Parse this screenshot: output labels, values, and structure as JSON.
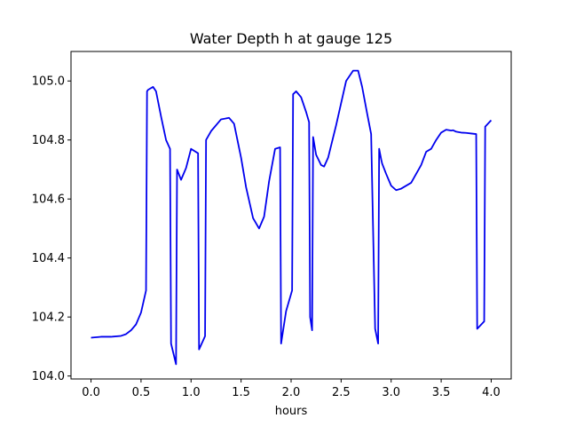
{
  "chart_data": {
    "type": "line",
    "title": "Water Depth h at gauge 125",
    "xlabel": "hours",
    "ylabel": "",
    "xlim": [
      -0.2,
      4.2
    ],
    "ylim": [
      103.99,
      105.1
    ],
    "xticks": [
      0.0,
      0.5,
      1.0,
      1.5,
      2.0,
      2.5,
      3.0,
      3.5,
      4.0
    ],
    "xtick_labels": [
      "0.0",
      "0.5",
      "1.0",
      "1.5",
      "2.0",
      "2.5",
      "3.0",
      "3.5",
      "4.0"
    ],
    "yticks": [
      104.0,
      104.2,
      104.4,
      104.6,
      104.8,
      105.0
    ],
    "ytick_labels": [
      "104.0",
      "104.2",
      "104.4",
      "104.6",
      "104.8",
      "105.0"
    ],
    "grid": false,
    "line_color": "#0000ee",
    "series": [
      {
        "x": [
          0.0,
          0.1,
          0.2,
          0.3,
          0.35,
          0.4,
          0.45,
          0.5,
          0.55,
          0.56,
          0.57,
          0.62,
          0.65,
          0.7,
          0.75,
          0.79,
          0.8,
          0.85,
          0.86,
          0.9,
          0.95,
          1.0,
          1.07,
          1.08,
          1.14,
          1.15,
          1.2,
          1.3,
          1.38,
          1.43,
          1.5,
          1.55,
          1.62,
          1.68,
          1.73,
          1.78,
          1.84,
          1.89,
          1.9,
          1.95,
          2.01,
          2.02,
          2.05,
          2.1,
          2.15,
          2.18,
          2.19,
          2.21,
          2.22,
          2.25,
          2.3,
          2.33,
          2.37,
          2.45,
          2.55,
          2.62,
          2.67,
          2.71,
          2.76,
          2.8,
          2.84,
          2.87,
          2.88,
          2.9,
          2.91,
          2.95,
          3.0,
          3.05,
          3.1,
          3.2,
          3.3,
          3.35,
          3.4,
          3.45,
          3.5,
          3.55,
          3.6,
          3.62,
          3.65,
          3.7,
          3.75,
          3.8,
          3.85,
          3.86,
          3.93,
          3.94,
          4.0
        ],
        "y": [
          104.13,
          104.133,
          104.133,
          104.136,
          104.142,
          104.155,
          104.175,
          104.215,
          104.29,
          104.965,
          104.97,
          104.98,
          104.965,
          104.88,
          104.8,
          104.77,
          104.11,
          104.04,
          104.7,
          104.665,
          104.705,
          104.77,
          104.755,
          104.09,
          104.135,
          104.8,
          104.83,
          104.87,
          104.875,
          104.855,
          104.74,
          104.64,
          104.535,
          104.5,
          104.54,
          104.66,
          104.77,
          104.775,
          104.11,
          104.22,
          104.29,
          104.955,
          104.965,
          104.945,
          104.895,
          104.86,
          104.2,
          104.155,
          104.81,
          104.75,
          104.715,
          104.71,
          104.74,
          104.85,
          105.0,
          105.035,
          105.035,
          104.98,
          104.89,
          104.82,
          104.16,
          104.11,
          104.77,
          104.735,
          104.72,
          104.685,
          104.645,
          104.63,
          104.635,
          104.655,
          104.715,
          104.76,
          104.77,
          104.8,
          104.825,
          104.835,
          104.832,
          104.833,
          104.828,
          104.825,
          104.824,
          104.822,
          104.82,
          104.16,
          104.185,
          104.845,
          104.867
        ]
      }
    ]
  }
}
